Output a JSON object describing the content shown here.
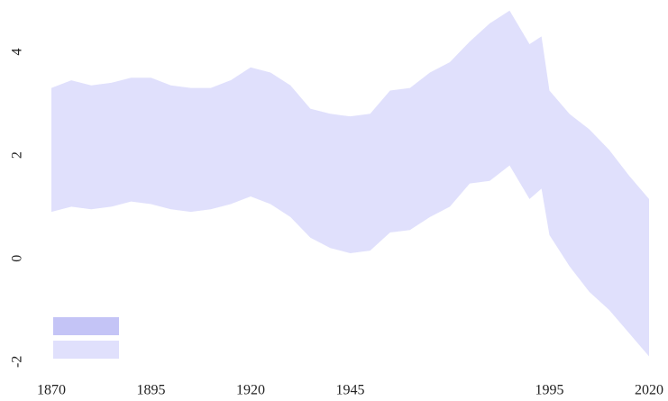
{
  "chart_data": {
    "type": "band",
    "x": [
      1870,
      1875,
      1880,
      1885,
      1890,
      1895,
      1900,
      1905,
      1910,
      1915,
      1920,
      1925,
      1930,
      1935,
      1940,
      1945,
      1950,
      1955,
      1960,
      1965,
      1970,
      1975,
      1980,
      1985,
      1990,
      1993,
      1995,
      2000,
      2005,
      2010,
      2015,
      2020
    ],
    "upper": [
      3.3,
      3.45,
      3.35,
      3.4,
      3.5,
      3.5,
      3.35,
      3.3,
      3.3,
      3.45,
      3.7,
      3.6,
      3.35,
      2.9,
      2.8,
      2.75,
      2.8,
      3.25,
      3.3,
      3.6,
      3.8,
      4.2,
      4.55,
      4.8,
      4.15,
      4.3,
      3.25,
      2.8,
      2.5,
      2.1,
      1.6,
      1.15
    ],
    "lower": [
      0.9,
      1.0,
      0.95,
      1.0,
      1.1,
      1.05,
      0.95,
      0.9,
      0.95,
      1.05,
      1.2,
      1.05,
      0.8,
      0.4,
      0.2,
      0.1,
      0.15,
      0.5,
      0.55,
      0.8,
      1.0,
      1.45,
      1.5,
      1.8,
      1.15,
      1.35,
      0.45,
      -0.15,
      -0.65,
      -1.0,
      -1.45,
      -1.9
    ],
    "color": "#e0e0fc",
    "xlim": [
      1870,
      2020
    ],
    "xticks": [
      1870,
      1895,
      1920,
      1945,
      1995,
      2020
    ],
    "ylim": [
      -2.1,
      4.9
    ],
    "yticks": [
      -2,
      0,
      2,
      4
    ],
    "legend": {
      "position": "lower left",
      "colors": [
        "#c4c4f6",
        "#e0e0fc"
      ]
    }
  }
}
